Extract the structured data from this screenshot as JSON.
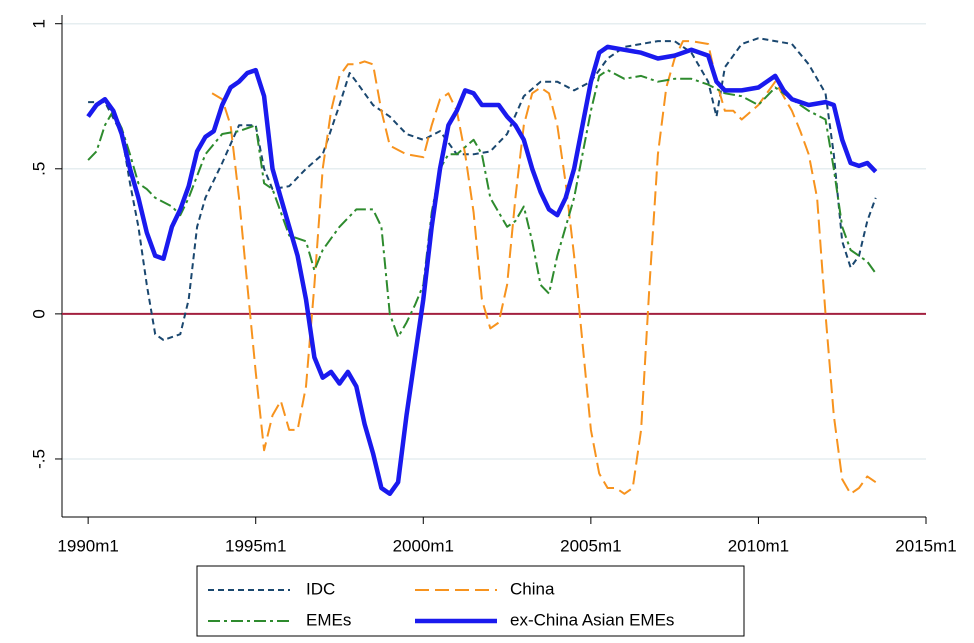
{
  "chart_data": {
    "type": "line",
    "xlim": [
      1989.22,
      2015
    ],
    "xticks": [
      {
        "value": 1990,
        "label": "1990m1"
      },
      {
        "value": 1995,
        "label": "1995m1"
      },
      {
        "value": 2000,
        "label": "2000m1"
      },
      {
        "value": 2005,
        "label": "2005m1"
      },
      {
        "value": 2010,
        "label": "2010m1"
      },
      {
        "value": 2015,
        "label": "2015m1"
      }
    ],
    "ylim": [
      -0.7,
      1.03
    ],
    "yticks": [
      {
        "value": -0.5,
        "label": "-.5"
      },
      0,
      {
        "value": 0.5,
        "label": ".5"
      },
      1
    ],
    "grid": true,
    "grid_color": "#e6eef0",
    "yline": 0,
    "yline_color": "#a3203f",
    "legend": "bottom",
    "series": [
      {
        "name": "IDC",
        "color": "#1a476f",
        "dash": "6,4",
        "width": 2,
        "x": [
          1990,
          1990.5,
          1991,
          1991.25,
          1991.5,
          1991.75,
          1992,
          1992.25,
          1992.5,
          1992.75,
          1993,
          1993.25,
          1993.5,
          1994,
          1994.5,
          1995,
          1995.25,
          1995.5,
          1996,
          1996.5,
          1997,
          1997.5,
          1997.8,
          1998,
          1998.5,
          1999,
          1999.5,
          2000,
          2000.5,
          2001,
          2001.5,
          2002,
          2002.5,
          2003,
          2003.5,
          2004,
          2004.5,
          2005,
          2005.5,
          2006,
          2006.5,
          2007,
          2007.5,
          2008,
          2008.5,
          2008.75,
          2009,
          2009.5,
          2010,
          2010.5,
          2011,
          2011.5,
          2012,
          2012.25,
          2012.5,
          2012.75,
          2013,
          2013.25,
          2013.5
        ],
        "values": [
          0.73,
          0.73,
          0.62,
          0.45,
          0.3,
          0.1,
          -0.07,
          -0.09,
          -0.08,
          -0.07,
          0.05,
          0.3,
          0.4,
          0.52,
          0.65,
          0.65,
          0.5,
          0.43,
          0.44,
          0.5,
          0.55,
          0.72,
          0.83,
          0.8,
          0.72,
          0.68,
          0.62,
          0.6,
          0.63,
          0.55,
          0.55,
          0.56,
          0.62,
          0.75,
          0.8,
          0.8,
          0.77,
          0.8,
          0.88,
          0.92,
          0.93,
          0.94,
          0.94,
          0.9,
          0.8,
          0.68,
          0.85,
          0.93,
          0.95,
          0.94,
          0.93,
          0.86,
          0.76,
          0.55,
          0.25,
          0.16,
          0.2,
          0.32,
          0.4
        ]
      },
      {
        "name": "China",
        "color": "#f7931e",
        "dash": "14,6",
        "width": 2,
        "x": [
          1993.7,
          1994,
          1994.25,
          1994.5,
          1994.75,
          1995,
          1995.25,
          1995.5,
          1995.75,
          1996,
          1996.25,
          1996.5,
          1996.75,
          1997,
          1997.25,
          1997.5,
          1997.75,
          1998,
          1998.25,
          1998.5,
          1998.75,
          1999,
          1999.5,
          2000,
          2000.25,
          2000.5,
          2000.75,
          2001,
          2001.25,
          2001.5,
          2001.75,
          2002,
          2002.25,
          2002.5,
          2002.75,
          2003,
          2003.25,
          2003.5,
          2003.75,
          2004,
          2004.25,
          2004.5,
          2004.75,
          2005,
          2005.25,
          2005.5,
          2005.75,
          2006,
          2006.25,
          2006.5,
          2006.75,
          2007,
          2007.25,
          2007.5,
          2007.75,
          2008,
          2008.5,
          2008.75,
          2009,
          2009.25,
          2009.5,
          2010,
          2010.5,
          2011,
          2011.25,
          2011.5,
          2011.75,
          2012,
          2012.25,
          2012.5,
          2012.75,
          2013,
          2013.25,
          2013.5
        ],
        "values": [
          0.76,
          0.74,
          0.65,
          0.4,
          0.1,
          -0.2,
          -0.47,
          -0.35,
          -0.3,
          -0.4,
          -0.4,
          -0.25,
          0.1,
          0.5,
          0.7,
          0.82,
          0.86,
          0.86,
          0.87,
          0.86,
          0.7,
          0.58,
          0.55,
          0.54,
          0.65,
          0.74,
          0.76,
          0.7,
          0.55,
          0.35,
          0.05,
          -0.05,
          -0.03,
          0.1,
          0.4,
          0.65,
          0.76,
          0.78,
          0.76,
          0.65,
          0.45,
          0.2,
          -0.1,
          -0.4,
          -0.55,
          -0.6,
          -0.6,
          -0.62,
          -0.6,
          -0.4,
          0.1,
          0.55,
          0.78,
          0.88,
          0.94,
          0.94,
          0.93,
          0.8,
          0.7,
          0.7,
          0.67,
          0.72,
          0.8,
          0.7,
          0.63,
          0.55,
          0.4,
          0,
          -0.35,
          -0.57,
          -0.62,
          -0.6,
          -0.56,
          -0.58
        ]
      },
      {
        "name": "EMEs",
        "color": "#2e8b2e",
        "dash": "12,4,3,4",
        "width": 2,
        "x": [
          1990,
          1990.25,
          1990.5,
          1990.75,
          1991,
          1991.25,
          1991.5,
          1991.75,
          1992,
          1992.5,
          1992.75,
          1993,
          1993.5,
          1994,
          1994.5,
          1995,
          1995.25,
          1995.5,
          1996,
          1996.5,
          1996.75,
          1997,
          1997.5,
          1998,
          1998.5,
          1998.75,
          1999,
          1999.25,
          1999.5,
          1999.75,
          2000,
          2000.25,
          2000.5,
          2000.75,
          2001,
          2001.5,
          2001.75,
          2002,
          2002.5,
          2002.75,
          2003,
          2003.25,
          2003.5,
          2003.75,
          2004,
          2004.5,
          2005,
          2005.25,
          2005.5,
          2006,
          2006.5,
          2007,
          2007.5,
          2008,
          2008.5,
          2009,
          2009.5,
          2010,
          2010.5,
          2011,
          2011.5,
          2012,
          2012.25,
          2012.5,
          2012.75,
          2013,
          2013.25,
          2013.5
        ],
        "values": [
          0.53,
          0.56,
          0.65,
          0.7,
          0.64,
          0.55,
          0.45,
          0.43,
          0.4,
          0.37,
          0.34,
          0.4,
          0.55,
          0.62,
          0.63,
          0.65,
          0.45,
          0.43,
          0.27,
          0.25,
          0.15,
          0.22,
          0.3,
          0.36,
          0.36,
          0.3,
          0,
          -0.08,
          -0.03,
          0.03,
          0.1,
          0.35,
          0.5,
          0.55,
          0.55,
          0.6,
          0.55,
          0.4,
          0.3,
          0.32,
          0.37,
          0.25,
          0.1,
          0.07,
          0.2,
          0.4,
          0.7,
          0.82,
          0.84,
          0.81,
          0.82,
          0.8,
          0.81,
          0.81,
          0.79,
          0.76,
          0.75,
          0.72,
          0.78,
          0.74,
          0.7,
          0.67,
          0.5,
          0.3,
          0.22,
          0.2,
          0.18,
          0.14
        ]
      },
      {
        "name": "ex-China Asian EMEs",
        "color": "#1a1aee",
        "dash": "none",
        "width": 4.5,
        "x": [
          1990,
          1990.25,
          1990.5,
          1990.75,
          1991,
          1991.25,
          1991.5,
          1991.75,
          1992,
          1992.25,
          1992.5,
          1992.75,
          1993,
          1993.25,
          1993.5,
          1993.75,
          1994,
          1994.25,
          1994.5,
          1994.75,
          1995,
          1995.25,
          1995.5,
          1995.75,
          1996,
          1996.25,
          1996.5,
          1996.75,
          1997,
          1997.25,
          1997.5,
          1997.75,
          1998,
          1998.25,
          1998.5,
          1998.75,
          1999,
          1999.25,
          1999.5,
          1999.75,
          2000,
          2000.25,
          2000.5,
          2000.75,
          2001,
          2001.25,
          2001.5,
          2001.75,
          2002,
          2002.25,
          2002.5,
          2002.75,
          2003,
          2003.25,
          2003.5,
          2003.75,
          2004,
          2004.25,
          2004.5,
          2004.75,
          2005,
          2005.25,
          2005.5,
          2006,
          2006.5,
          2007,
          2007.5,
          2008,
          2008.5,
          2008.75,
          2009,
          2009.5,
          2010,
          2010.25,
          2010.5,
          2010.75,
          2011,
          2011.5,
          2012,
          2012.25,
          2012.5,
          2012.75,
          2013,
          2013.25,
          2013.5
        ],
        "values": [
          0.68,
          0.72,
          0.74,
          0.7,
          0.62,
          0.5,
          0.4,
          0.28,
          0.2,
          0.19,
          0.3,
          0.36,
          0.44,
          0.56,
          0.61,
          0.63,
          0.72,
          0.78,
          0.8,
          0.83,
          0.84,
          0.75,
          0.5,
          0.4,
          0.3,
          0.2,
          0.05,
          -0.15,
          -0.22,
          -0.2,
          -0.24,
          -0.2,
          -0.25,
          -0.38,
          -0.48,
          -0.6,
          -0.62,
          -0.58,
          -0.35,
          -0.15,
          0.05,
          0.3,
          0.5,
          0.65,
          0.7,
          0.77,
          0.76,
          0.72,
          0.72,
          0.72,
          0.68,
          0.65,
          0.6,
          0.5,
          0.42,
          0.36,
          0.34,
          0.4,
          0.5,
          0.65,
          0.8,
          0.9,
          0.92,
          0.91,
          0.9,
          0.88,
          0.89,
          0.91,
          0.89,
          0.8,
          0.77,
          0.77,
          0.78,
          0.8,
          0.82,
          0.77,
          0.74,
          0.72,
          0.73,
          0.72,
          0.6,
          0.52,
          0.51,
          0.52,
          0.49
        ]
      }
    ]
  }
}
